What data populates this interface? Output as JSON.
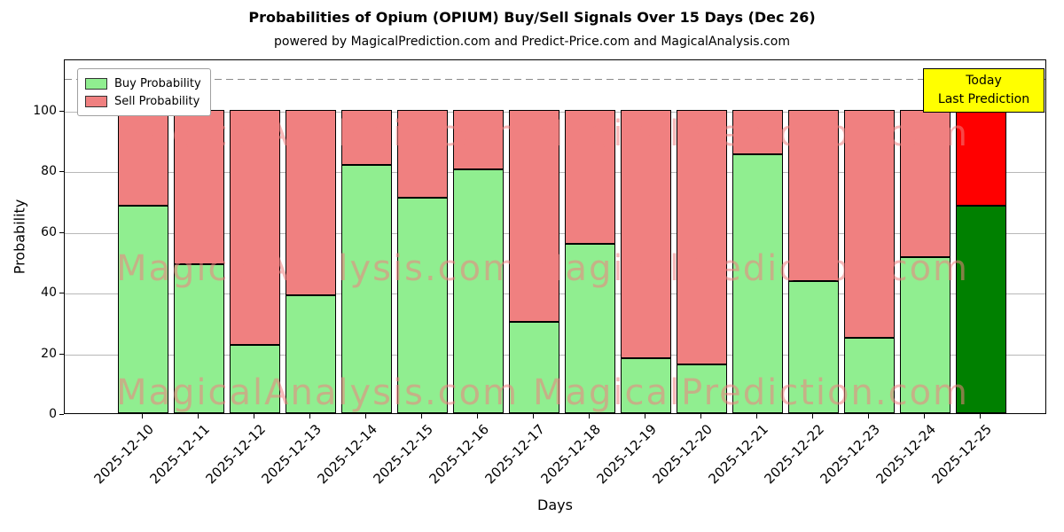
{
  "title": "Probabilities of Opium (OPIUM) Buy/Sell Signals Over 15 Days (Dec 26)",
  "subtitle": "powered by MagicalPrediction.com and Predict-Price.com and MagicalAnalysis.com",
  "legend": {
    "buy_label": "Buy Probability",
    "sell_label": "Sell Probability"
  },
  "today_box": {
    "line1": "Today",
    "line2": "Last Prediction",
    "background": "#ffff00"
  },
  "watermarks": {
    "left_text": "MagicalAnalysis.com",
    "right_text": "MagicalPrediction.com",
    "color": "#f08080"
  },
  "axes": {
    "xlabel": "Days",
    "ylabel": "Probability",
    "yticks": [
      0,
      20,
      40,
      60,
      80,
      100
    ],
    "ylim": [
      0,
      117
    ],
    "dashed_guide_y": 111,
    "grid": true
  },
  "colors": {
    "buy": "#90ee90",
    "sell": "#f08080",
    "today_buy": "#008000",
    "today_sell": "#ff0000",
    "bar_edge": "#000000",
    "grid": "#b8b8b8",
    "dashed_guide": "#8a8a8a"
  },
  "chart_data": {
    "type": "bar",
    "stacked": true,
    "title": "Probabilities of Opium (OPIUM) Buy/Sell Signals Over 15 Days (Dec 26)",
    "xlabel": "Days",
    "ylabel": "Probability",
    "ylim": [
      0,
      117
    ],
    "grid": true,
    "legend_position": "upper left",
    "categories": [
      "2025-12-10",
      "2025-12-11",
      "2025-12-12",
      "2025-12-13",
      "2025-12-14",
      "2025-12-15",
      "2025-12-16",
      "2025-12-17",
      "2025-12-18",
      "2025-12-19",
      "2025-12-20",
      "2025-12-21",
      "2025-12-22",
      "2025-12-23",
      "2025-12-24",
      "2025-12-25"
    ],
    "series": [
      {
        "name": "Buy Probability",
        "color": "#90ee90",
        "values": [
          68.5,
          49,
          22.5,
          39,
          82,
          71,
          80.5,
          30,
          56,
          18,
          16,
          85.5,
          43.5,
          25,
          51.5,
          68.5
        ]
      },
      {
        "name": "Sell Probability",
        "color": "#f08080",
        "values": [
          31.5,
          51,
          77.5,
          61,
          18,
          29,
          19.5,
          70,
          44,
          82,
          84,
          14.5,
          56.5,
          75,
          48.5,
          31.5
        ]
      }
    ],
    "last_bar_colors": {
      "buy": "#008000",
      "sell": "#ff0000"
    }
  }
}
